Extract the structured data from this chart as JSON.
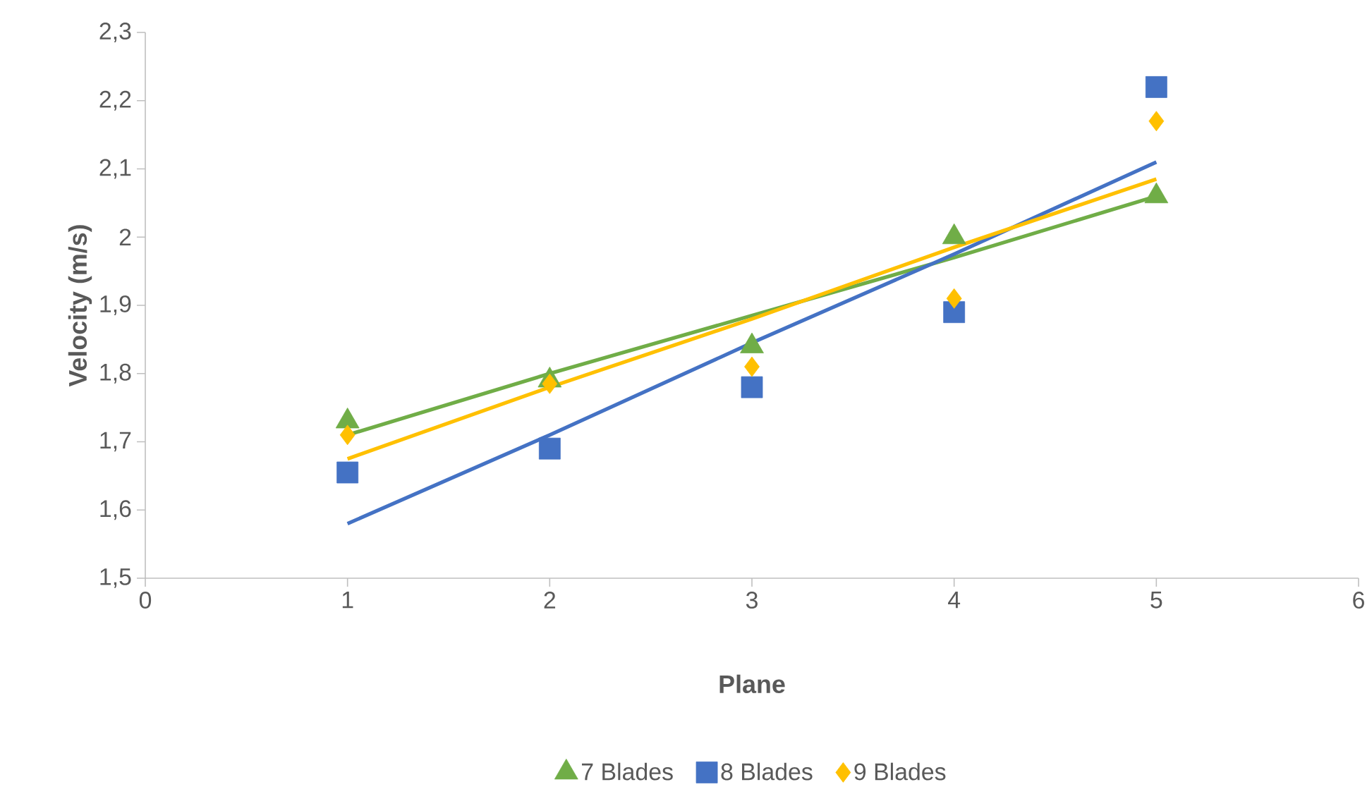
{
  "chart_data": {
    "type": "scatter",
    "xlabel": "Plane",
    "ylabel": "Velocity (m/s)",
    "xlim": [
      0,
      6
    ],
    "xticks": [
      0,
      1,
      2,
      3,
      4,
      5,
      6
    ],
    "ylim": [
      1.5,
      2.3
    ],
    "yticks": [
      {
        "value": 1.5,
        "label": "1,5"
      },
      {
        "value": 1.6,
        "label": "1,6"
      },
      {
        "value": 1.7,
        "label": "1,7"
      },
      {
        "value": 1.8,
        "label": "1,8"
      },
      {
        "value": 1.9,
        "label": "1,9"
      },
      {
        "value": 2,
        "label": "2"
      },
      {
        "value": 2.1,
        "label": "2,1"
      },
      {
        "value": 2.2,
        "label": "2,2"
      },
      {
        "value": 2.3,
        "label": "2,3"
      }
    ],
    "x": [
      1,
      2,
      3,
      4,
      5
    ],
    "legend": "bottom",
    "grid": false,
    "series": [
      {
        "name": "7 Blades",
        "color": "#70ad47",
        "marker": "triangle",
        "values": [
          1.73,
          1.79,
          1.84,
          2.0,
          2.06
        ]
      },
      {
        "name": "8 Blades",
        "color": "#4472c4",
        "marker": "square",
        "values": [
          1.655,
          1.69,
          1.78,
          1.89,
          2.22
        ]
      },
      {
        "name": "9 Blades",
        "color": "#ffc000",
        "marker": "diamond",
        "values": [
          1.71,
          1.785,
          1.81,
          1.91,
          2.17
        ]
      },
      {
        "type": "line",
        "color": "#70ad47",
        "marker": "none",
        "values": [
          1.71,
          1.8,
          1.885,
          1.97,
          2.06
        ]
      },
      {
        "type": "line",
        "color": "#4472c4",
        "marker": "none",
        "values": [
          1.58,
          1.71,
          1.845,
          1.975,
          2.11
        ]
      },
      {
        "type": "line",
        "color": "#ffc000",
        "marker": "none",
        "values": [
          1.675,
          1.78,
          1.88,
          1.985,
          2.085
        ]
      }
    ]
  }
}
